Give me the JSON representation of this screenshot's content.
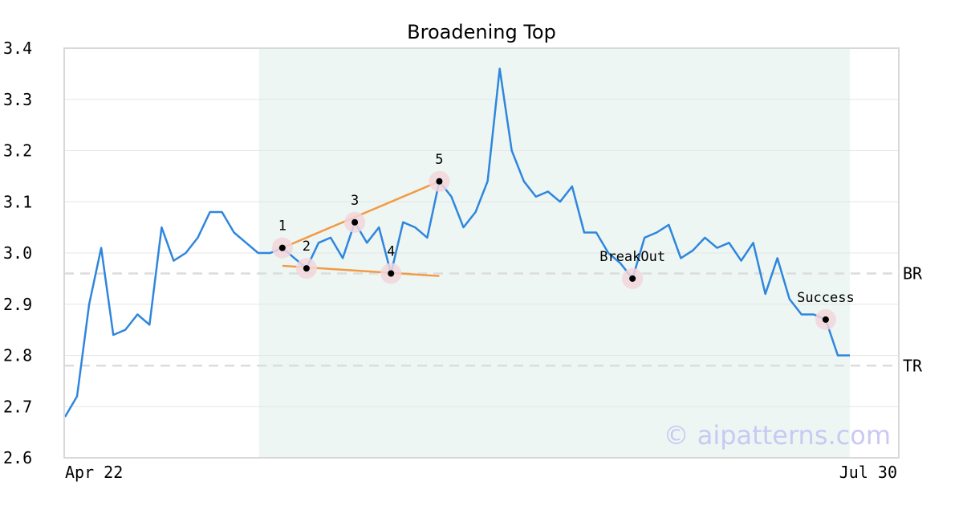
{
  "chart_data": {
    "type": "line",
    "title": "Broadening Top",
    "xlabel": "",
    "ylabel": "",
    "ylim": [
      2.6,
      3.4
    ],
    "yticks": [
      "2.6",
      "2.7",
      "2.8",
      "2.9",
      "3.0",
      "3.1",
      "3.2",
      "3.3",
      "3.4"
    ],
    "x_tick_labels": [
      "Apr 22",
      "Jul 30"
    ],
    "grid": "horizontal",
    "series": [
      {
        "color": "#2e86de",
        "values": [
          2.68,
          2.72,
          2.9,
          3.01,
          2.84,
          2.85,
          2.88,
          2.86,
          3.05,
          2.985,
          3.0,
          3.03,
          3.08,
          3.08,
          3.04,
          3.02,
          3.0,
          3.0,
          3.01,
          2.99,
          2.97,
          3.02,
          3.03,
          2.99,
          3.06,
          3.02,
          3.05,
          2.96,
          3.06,
          3.05,
          3.03,
          3.14,
          3.11,
          3.05,
          3.08,
          3.14,
          3.36,
          3.2,
          3.14,
          3.11,
          3.12,
          3.1,
          3.13,
          3.04,
          3.04,
          3.0,
          2.98,
          2.95,
          3.03,
          3.04,
          3.055,
          2.99,
          3.005,
          3.03,
          3.01,
          3.02,
          2.985,
          3.02,
          2.92,
          2.99,
          2.91,
          2.88,
          2.88,
          2.87,
          2.8,
          2.8
        ]
      }
    ],
    "pattern_region": {
      "start_index": 16,
      "end_index": 65,
      "color": "#edf6f2"
    },
    "reference_lines": [
      {
        "label": "BR",
        "value": 2.96
      },
      {
        "label": "TR",
        "value": 2.78
      }
    ],
    "points": [
      {
        "label": "1",
        "index": 18,
        "value": 3.01
      },
      {
        "label": "2",
        "index": 20,
        "value": 2.97
      },
      {
        "label": "3",
        "index": 24,
        "value": 3.06
      },
      {
        "label": "4",
        "index": 27,
        "value": 2.96
      },
      {
        "label": "5",
        "index": 31,
        "value": 3.14
      },
      {
        "label": "BreakOut",
        "index": 47,
        "value": 2.95
      },
      {
        "label": "Success",
        "index": 63,
        "value": 2.87
      }
    ],
    "trendlines": [
      {
        "from": {
          "index": 18,
          "value": 3.01
        },
        "to": {
          "index": 31,
          "value": 3.14
        },
        "color": "#f39a45"
      },
      {
        "from": {
          "index": 18,
          "value": 2.975
        },
        "to": {
          "index": 31,
          "value": 2.955
        },
        "color": "#f39a45"
      }
    ]
  },
  "watermark": "© aipatterns.com"
}
